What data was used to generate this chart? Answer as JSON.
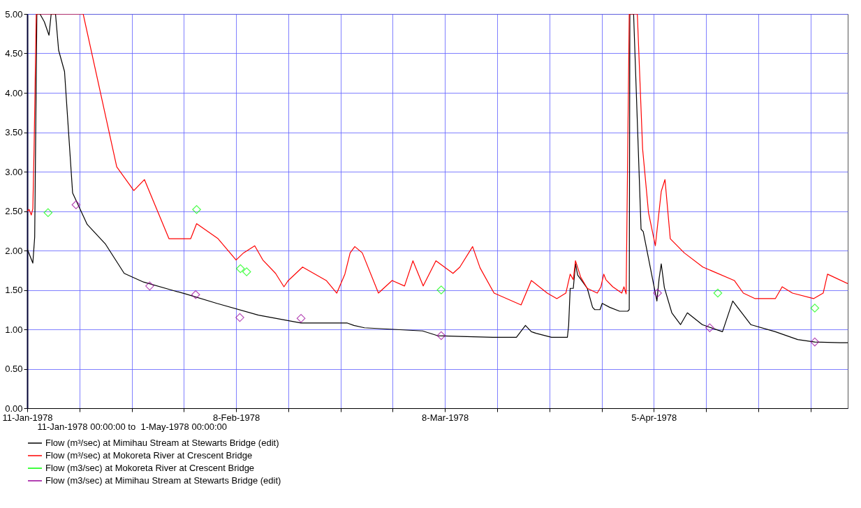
{
  "chart_data": {
    "type": "line",
    "xlabel": "11-Jan-1978 00:00:00 to  1-May-1978 00:00:00",
    "xlim": [
      "1978-01-11",
      "1978-05-01"
    ],
    "xticks": [
      {
        "value": "1978-01-11",
        "label": "11-Jan-1978"
      },
      {
        "value": "1978-01-18",
        "label": null
      },
      {
        "value": "1978-01-25",
        "label": null
      },
      {
        "value": "1978-02-01",
        "label": null
      },
      {
        "value": "1978-02-08",
        "label": "8-Feb-1978"
      },
      {
        "value": "1978-02-15",
        "label": null
      },
      {
        "value": "1978-02-22",
        "label": null
      },
      {
        "value": "1978-03-01",
        "label": null
      },
      {
        "value": "1978-03-08",
        "label": "8-Mar-1978"
      },
      {
        "value": "1978-03-15",
        "label": null
      },
      {
        "value": "1978-03-22",
        "label": null
      },
      {
        "value": "1978-03-29",
        "label": null
      },
      {
        "value": "1978-04-05",
        "label": "5-Apr-1978"
      },
      {
        "value": "1978-04-12",
        "label": null
      },
      {
        "value": "1978-04-19",
        "label": null
      },
      {
        "value": "1978-04-26",
        "label": null
      }
    ],
    "ylim": [
      0,
      5
    ],
    "yticks": [
      {
        "value": 0,
        "label": "0.00"
      },
      {
        "value": 0.5,
        "label": "0.50"
      },
      {
        "value": 1,
        "label": "1.00"
      },
      {
        "value": 1.5,
        "label": "1.50"
      },
      {
        "value": 2,
        "label": "2.00"
      },
      {
        "value": 2.5,
        "label": "2.50"
      },
      {
        "value": 3,
        "label": "3.00"
      },
      {
        "value": 3.5,
        "label": "3.50"
      },
      {
        "value": 4,
        "label": "4.00"
      },
      {
        "value": 4.5,
        "label": "4.50"
      },
      {
        "value": 5,
        "label": "5.00"
      }
    ],
    "grid": true,
    "legend": "bottom",
    "series": [
      {
        "name": "Flow (m³/sec) at Mimihau Stream at Stewarts Bridge (edit)",
        "color": "#000000",
        "type": "line",
        "marker": "none",
        "line_style": "solid",
        "x": [
          "1978-01-11T00:00",
          "1978-01-11T18:00",
          "1978-01-12T00:00",
          "1978-01-12T07:00",
          "1978-01-12T17:00",
          "1978-01-13T07:00",
          "1978-01-13T22:00",
          "1978-01-14T05:00",
          "1978-01-14T19:00",
          "1978-01-15T05:00",
          "1978-01-16T00:00",
          "1978-01-17T02:00",
          "1978-01-19T01:00",
          "1978-01-21T12:00",
          "1978-01-24T00:00",
          "1978-01-26T14:00",
          "1978-01-30T07:00",
          "1978-02-01T05:00",
          "1978-02-05T10:00",
          "1978-02-11T00:00",
          "1978-02-16T17:00",
          "1978-02-22T22:00",
          "1978-02-23T19:00",
          "1978-02-25T05:00",
          "1978-03-05T00:00",
          "1978-03-07T00:00",
          "1978-03-10T02:00",
          "1978-03-14T10:00",
          "1978-03-17T14:00",
          "1978-03-18T19:00",
          "1978-03-19T14:00",
          "1978-03-20T05:00",
          "1978-03-22T07:00",
          "1978-03-24T10:00",
          "1978-03-24T14:00",
          "1978-03-24T19:00",
          "1978-03-25T05:00",
          "1978-03-25T12:00",
          "1978-03-25T19:00",
          "1978-03-27T02:00",
          "1978-03-27T19:00",
          "1978-03-28T02:00",
          "1978-03-28T19:00",
          "1978-03-29T02:00",
          "1978-03-30T02:00",
          "1978-03-31T10:00",
          "1978-04-01T12:00",
          "1978-04-01T17:00",
          "1978-04-01T19:00",
          "1978-04-02T07:00",
          "1978-04-03T07:00",
          "1978-04-03T14:00",
          "1978-04-05T10:00",
          "1978-04-05T17:00",
          "1978-04-06T00:00",
          "1978-04-06T10:00",
          "1978-04-07T10:00",
          "1978-04-08T14:00",
          "1978-04-09T12:00",
          "1978-04-11T12:00",
          "1978-04-13T00:00",
          "1978-04-14T05:00",
          "1978-04-15T14:00",
          "1978-04-18T00:00",
          "1978-04-21T07:00",
          "1978-04-24T07:00",
          "1978-04-26T14:00",
          "1978-04-30T00:00",
          "1978-05-01T00:00"
        ],
        "values": [
          2.02,
          1.84,
          2.17,
          5.0,
          5.0,
          4.9,
          4.73,
          5.0,
          5.0,
          4.54,
          4.27,
          2.73,
          2.33,
          2.08,
          1.71,
          1.6,
          1.5,
          1.45,
          1.33,
          1.18,
          1.08,
          1.08,
          1.05,
          1.02,
          0.98,
          0.92,
          0.91,
          0.9,
          0.9,
          1.05,
          0.97,
          0.95,
          0.9,
          0.9,
          1.05,
          1.52,
          1.52,
          1.83,
          1.69,
          1.52,
          1.28,
          1.25,
          1.25,
          1.33,
          1.28,
          1.23,
          1.23,
          1.25,
          5.0,
          5.0,
          2.27,
          2.24,
          1.36,
          1.64,
          1.83,
          1.53,
          1.21,
          1.06,
          1.21,
          1.06,
          1.01,
          0.97,
          1.36,
          1.06,
          0.97,
          0.87,
          0.84,
          0.83,
          0.83
        ]
      },
      {
        "name": "Flow (m³/sec) at Mokoreta River at Crescent Bridge",
        "color": "#ff0000",
        "type": "line",
        "marker": "none",
        "line_style": "solid",
        "x": [
          "1978-01-11T00:00",
          "1978-01-11T06:00",
          "1978-01-11T13:00",
          "1978-01-11T18:00",
          "1978-01-11T22:00",
          "1978-01-12T05:00",
          "1978-01-18T12:00",
          "1978-01-23T00:00",
          "1978-01-25T07:00",
          "1978-01-26T17:00",
          "1978-01-30T00:00",
          "1978-02-01T22:00",
          "1978-02-02T17:00",
          "1978-02-05T14:00",
          "1978-02-08T00:00",
          "1978-02-09T00:00",
          "1978-02-10T12:00",
          "1978-02-11T14:00",
          "1978-02-13T07:00",
          "1978-02-14T10:00",
          "1978-02-15T00:00",
          "1978-02-16T22:00",
          "1978-02-20T02:00",
          "1978-02-21T12:00",
          "1978-02-22T14:00",
          "1978-02-23T07:00",
          "1978-02-23T22:00",
          "1978-02-24T22:00",
          "1978-02-27T02:00",
          "1978-02-28T22:00",
          "1978-03-02T14:00",
          "1978-03-03T17:00",
          "1978-03-05T02:00",
          "1978-03-06T19:00",
          "1978-03-09T02:00",
          "1978-03-10T00:00",
          "1978-03-11T17:00",
          "1978-03-12T17:00",
          "1978-03-14T14:00",
          "1978-03-18T05:00",
          "1978-03-19T14:00",
          "1978-03-21T17:00",
          "1978-03-23T00:00",
          "1978-03-24T05:00",
          "1978-03-24T19:00",
          "1978-03-25T05:00",
          "1978-03-25T12:00",
          "1978-03-26T05:00",
          "1978-03-27T02:00",
          "1978-03-28T10:00",
          "1978-03-28T22:00",
          "1978-03-29T07:00",
          "1978-03-29T14:00",
          "1978-03-30T12:00",
          "1978-03-31T17:00",
          "1978-04-01T00:00",
          "1978-04-01T07:00",
          "1978-04-01T17:00",
          "1978-04-02T19:00",
          "1978-04-03T12:00",
          "1978-04-04T07:00",
          "1978-04-05T05:00",
          "1978-04-06T00:00",
          "1978-04-06T12:00",
          "1978-04-07T05:00",
          "1978-04-09T02:00",
          "1978-04-11T14:00",
          "1978-04-15T19:00",
          "1978-04-17T00:00",
          "1978-04-18T14:00",
          "1978-04-21T07:00",
          "1978-04-22T05:00",
          "1978-04-23T14:00",
          "1978-04-26T10:00",
          "1978-04-27T17:00",
          "1978-04-28T07:00",
          "1978-05-01T00:00"
        ],
        "values": [
          2.5,
          2.52,
          2.45,
          2.53,
          3.29,
          5.0,
          5.0,
          3.06,
          2.76,
          2.9,
          2.15,
          2.15,
          2.34,
          2.15,
          1.88,
          1.97,
          2.06,
          1.88,
          1.71,
          1.54,
          1.62,
          1.79,
          1.62,
          1.46,
          1.7,
          1.97,
          2.05,
          1.97,
          1.46,
          1.62,
          1.55,
          1.87,
          1.55,
          1.87,
          1.71,
          1.79,
          2.05,
          1.78,
          1.46,
          1.31,
          1.62,
          1.46,
          1.39,
          1.46,
          1.7,
          1.63,
          1.87,
          1.66,
          1.52,
          1.46,
          1.54,
          1.7,
          1.63,
          1.54,
          1.46,
          1.54,
          1.45,
          5.0,
          5.0,
          3.29,
          2.48,
          2.06,
          2.75,
          2.9,
          2.15,
          1.97,
          1.79,
          1.62,
          1.46,
          1.39,
          1.39,
          1.54,
          1.46,
          1.39,
          1.46,
          1.7,
          1.58
        ]
      },
      {
        "name": "Flow (m3/sec) at Mokoreta River at Crescent Bridge",
        "color": "#00ff00",
        "type": "scatter",
        "marker": "diamond",
        "x": [
          "1978-01-13T19:00",
          "1978-02-02T17:00",
          "1978-02-08T14:00",
          "1978-02-09T10:00",
          "1978-03-07T12:00",
          "1978-04-13T14:00",
          "1978-04-26T14:00"
        ],
        "values": [
          2.48,
          2.52,
          1.77,
          1.73,
          1.5,
          1.46,
          1.27
        ]
      },
      {
        "name": "Flow (m3/sec) at Mimihau Stream at Stewarts Bridge (edit)",
        "color": "#990099",
        "type": "scatter",
        "marker": "diamond",
        "x": [
          "1978-01-17T13:00",
          "1978-01-27T10:00",
          "1978-02-02T14:00",
          "1978-02-08T12:00",
          "1978-02-16T17:00",
          "1978-03-07T12:00",
          "1978-04-05T12:00",
          "1978-04-12T12:00",
          "1978-04-26T14:00"
        ],
        "values": [
          2.58,
          1.55,
          1.44,
          1.15,
          1.14,
          0.92,
          1.46,
          1.02,
          0.84
        ]
      }
    ]
  }
}
